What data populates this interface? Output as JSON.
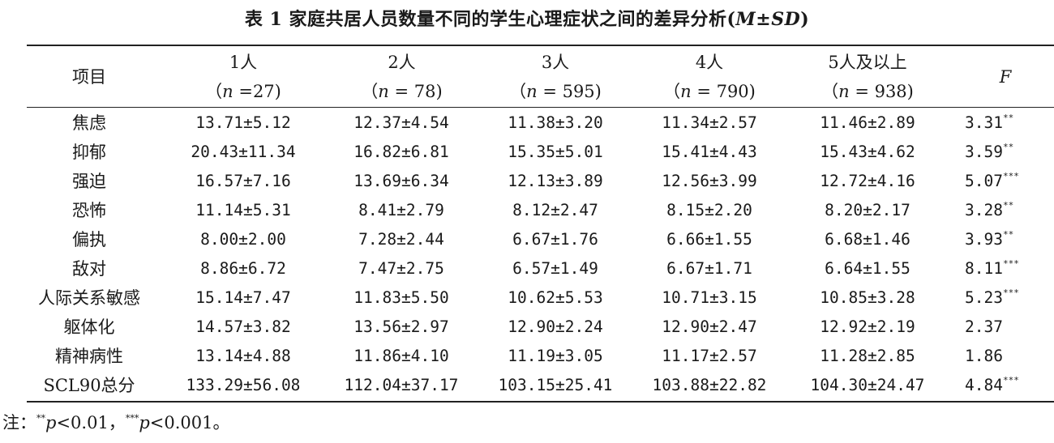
{
  "caption": {
    "prefix": "表 1  家庭共居人员数量不同的学生心理症状之间的差异分析(",
    "stat": "M±SD",
    "suffix": ")"
  },
  "header": {
    "item_label": "项目",
    "f_label": "F",
    "groups": [
      {
        "label": "1人",
        "n_prefix": "（",
        "n_var": "n",
        "n_value": " =27)"
      },
      {
        "label": "2人",
        "n_prefix": "（",
        "n_var": "n",
        "n_value": " = 78)"
      },
      {
        "label": "3人",
        "n_prefix": "（",
        "n_var": "n",
        "n_value": " = 595)"
      },
      {
        "label": "4人",
        "n_prefix": "（",
        "n_var": "n",
        "n_value": " = 790)"
      },
      {
        "label": "5人及以上",
        "n_prefix": "（",
        "n_var": "n",
        "n_value": " = 938)"
      }
    ]
  },
  "rows": [
    {
      "item": "焦虑",
      "g1": "13.71±5.12",
      "g2": "12.37±4.54",
      "g3": "11.38±3.20",
      "g4": "11.34±2.57",
      "g5": "11.46±2.89",
      "f": "3.31",
      "sig": "**"
    },
    {
      "item": "抑郁",
      "g1": "20.43±11.34",
      "g2": "16.82±6.81",
      "g3": "15.35±5.01",
      "g4": "15.41±4.43",
      "g5": "15.43±4.62",
      "f": "3.59",
      "sig": "**"
    },
    {
      "item": "强迫",
      "g1": "16.57±7.16",
      "g2": "13.69±6.34",
      "g3": "12.13±3.89",
      "g4": "12.56±3.99",
      "g5": "12.72±4.16",
      "f": "5.07",
      "sig": "***"
    },
    {
      "item": "恐怖",
      "g1": "11.14±5.31",
      "g2": "8.41±2.79",
      "g3": "8.12±2.47",
      "g4": "8.15±2.20",
      "g5": "8.20±2.17",
      "f": "3.28",
      "sig": "**"
    },
    {
      "item": "偏执",
      "g1": "8.00±2.00",
      "g2": "7.28±2.44",
      "g3": "6.67±1.76",
      "g4": "6.66±1.55",
      "g5": "6.68±1.46",
      "f": "3.93",
      "sig": "**"
    },
    {
      "item": "敌对",
      "g1": "8.86±6.72",
      "g2": "7.47±2.75",
      "g3": "6.57±1.49",
      "g4": "6.67±1.71",
      "g5": "6.64±1.55",
      "f": "8.11",
      "sig": "***"
    },
    {
      "item": "人际关系敏感",
      "g1": "15.14±7.47",
      "g2": "11.83±5.50",
      "g3": "10.62±5.53",
      "g4": "10.71±3.15",
      "g5": "10.85±3.28",
      "f": "5.23",
      "sig": "***"
    },
    {
      "item": "躯体化",
      "g1": "14.57±3.82",
      "g2": "13.56±2.97",
      "g3": "12.90±2.24",
      "g4": "12.90±2.47",
      "g5": "12.92±2.19",
      "f": "2.37",
      "sig": ""
    },
    {
      "item": "精神病性",
      "g1": "13.14±4.88",
      "g2": "11.86±4.10",
      "g3": "11.19±3.05",
      "g4": "11.17±2.57",
      "g5": "11.28±2.85",
      "f": "1.86",
      "sig": ""
    },
    {
      "item": "SCL90总分",
      "g1": "133.29±56.08",
      "g2": "112.04±37.17",
      "g3": "103.15±25.41",
      "g4": "103.88±22.82",
      "g5": "104.30±24.47",
      "f": "4.84",
      "sig": "***"
    }
  ],
  "note": {
    "prefix": "注：",
    "sig1": "**",
    "p1": "p",
    "text1": "<0.01，",
    "sig2": "***",
    "p2": "p",
    "text2": "<0.001。"
  }
}
